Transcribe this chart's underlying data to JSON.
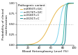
{
  "title": "",
  "xlabel": "Blood Heteroplasmy Level (%)",
  "ylabel": "Probability of clinical\nmanifestation",
  "xlim": [
    0,
    100
  ],
  "ylim": [
    0,
    1.0
  ],
  "yticks": [
    0.0,
    0.25,
    0.5,
    0.75,
    1.0
  ],
  "xticks": [
    0,
    20,
    40,
    60,
    80,
    100
  ],
  "hline_y": 0.5,
  "hline_color": "#c8c8c8",
  "hline_style": "--",
  "background_color": "#ffffff",
  "curves": [
    {
      "label": "m.8993T>G/C",
      "color": "#e8b84b",
      "k": 0.12,
      "x0": 58
    },
    {
      "label": "m.9176T>G/C",
      "color": "#7dd4ee",
      "k": 0.35,
      "x0": 75
    },
    {
      "label": "m.9185T>C",
      "color": "#3ab8aa",
      "k": 0.8,
      "x0": 83
    },
    {
      "label": "m.9191T>C",
      "color": "#1e8896",
      "k": 1.2,
      "x0": 86
    }
  ],
  "legend_fontsize": 2.8,
  "legend_title": "Pathogenic variant",
  "legend_title_fontsize": 3.0,
  "axis_label_fontsize": 3.2,
  "tick_fontsize": 2.8,
  "linewidth": 0.7
}
